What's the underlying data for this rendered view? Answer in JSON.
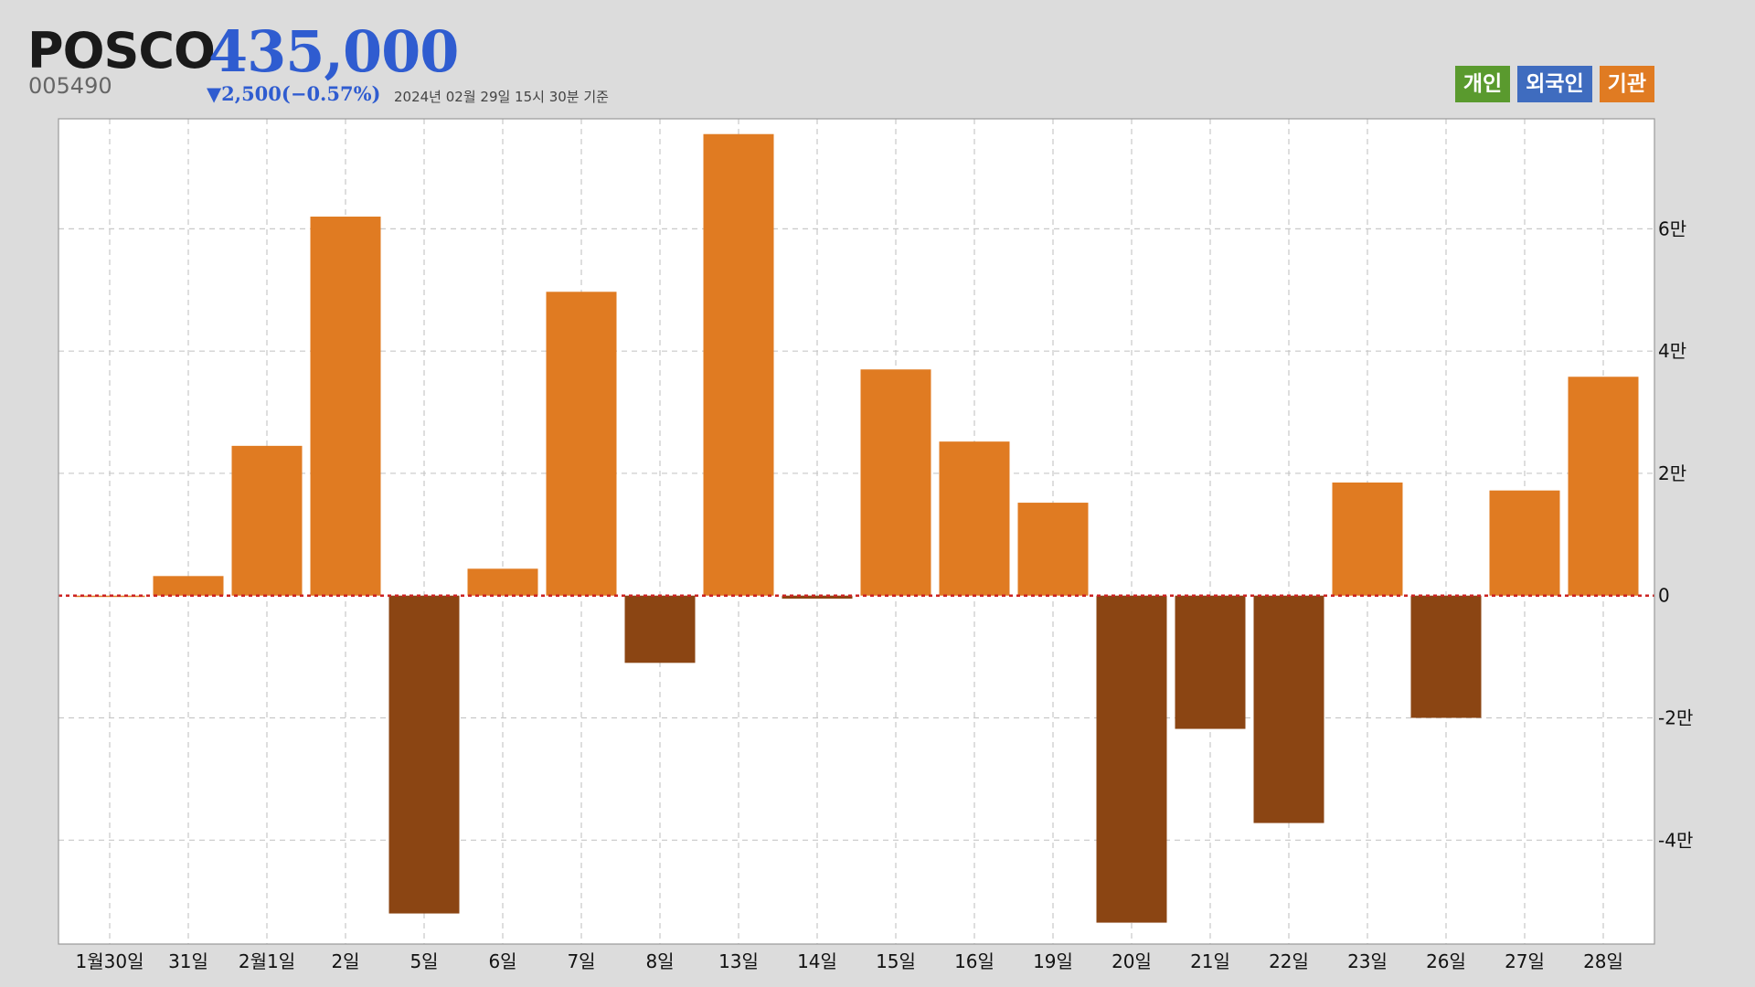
{
  "header": {
    "name": "POSCO",
    "code": "005490",
    "price": "435,000",
    "change": "▼2,500(−0.57%)",
    "basis": "2024년 02월 29일 15시 30분 기준"
  },
  "legend": [
    {
      "label": "개인",
      "color": "#5a9a2e"
    },
    {
      "label": "외국인",
      "color": "#3f6cbf"
    },
    {
      "label": "기관",
      "color": "#e07b22"
    }
  ],
  "colors": {
    "positive": "#e07b22",
    "negative": "#8b4513",
    "zero_line": "#cc2222",
    "price": "#2f5cd0"
  },
  "chart_data": {
    "type": "bar",
    "series": [
      {
        "name": "기관"
      }
    ],
    "categories": [
      "1월30일",
      "31일",
      "2월1일",
      "2일",
      "5일",
      "6일",
      "7일",
      "8일",
      "13일",
      "14일",
      "15일",
      "16일",
      "19일",
      "20일",
      "21일",
      "22일",
      "23일",
      "26일",
      "27일",
      "28일"
    ],
    "values": [
      0,
      3200,
      24500,
      62000,
      -52000,
      4400,
      49700,
      -11000,
      75500,
      -500,
      37000,
      25200,
      15200,
      -53500,
      -21800,
      -37200,
      18500,
      -20000,
      17200,
      35800
    ],
    "ylim": [
      -57000,
      78000
    ],
    "yticks": [
      -40000,
      -20000,
      0,
      20000,
      40000,
      60000
    ],
    "ytick_labels": [
      "-4만",
      "-2만",
      "0",
      "2만",
      "4만",
      "6만"
    ],
    "axis_position": "right",
    "grid": true
  }
}
